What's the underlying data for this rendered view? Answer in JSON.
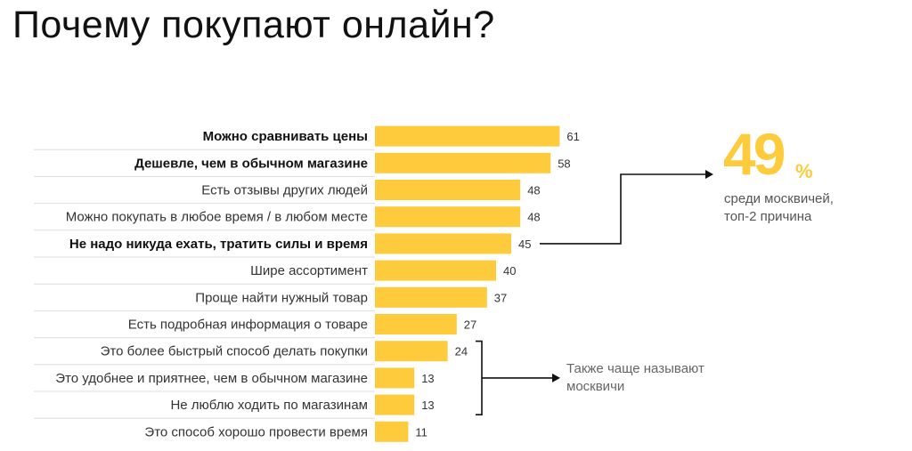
{
  "title": "Почему покупают онлайн?",
  "chart_data": {
    "type": "bar",
    "orientation": "horizontal",
    "categories": [
      "Можно сравнивать цены",
      "Дешевле, чем в обычном магазине",
      "Есть отзывы других людей",
      "Можно покупать в любое время / в любом месте",
      "Не надо никуда ехать, тратить силы и время",
      "Шире ассортимент",
      "Проще найти нужный товар",
      "Есть подробная информация о товаре",
      "Это более быстрый способ делать покупки",
      "Это удобнее и приятнее, чем в обычном магазине",
      "Не люблю ходить по магазинам",
      "Это способ хорошо провести время"
    ],
    "values": [
      61,
      58,
      48,
      48,
      45,
      40,
      37,
      27,
      24,
      13,
      13,
      11
    ],
    "bold_categories": [
      0,
      1,
      4
    ],
    "bar_color": "#fdcb3b",
    "xlim": [
      0,
      100
    ]
  },
  "callout_moscow": {
    "value": "49",
    "unit": "%",
    "text": "среди москвичей, топ-2 причина"
  },
  "callout_also": {
    "text": "Также чаще называют москвичи"
  }
}
